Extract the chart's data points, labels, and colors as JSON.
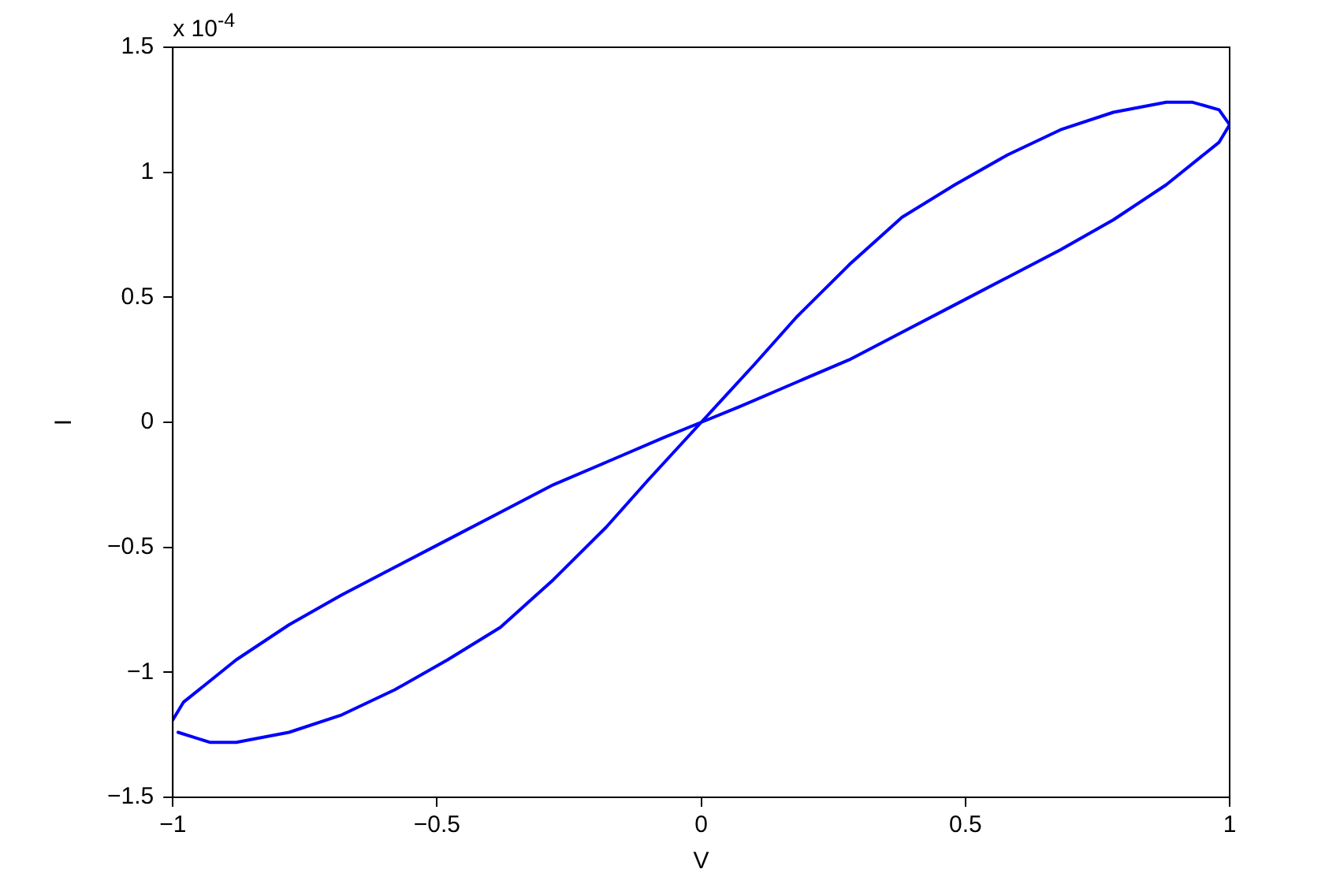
{
  "chart_data": {
    "type": "line",
    "xlabel": "V",
    "ylabel": "I",
    "annotations": [
      "x 10$^{-4}$"
    ],
    "xlim": [
      -1,
      1
    ],
    "xticks": [
      {
        "value": -1,
        "label": "−1"
      },
      {
        "value": -0.5,
        "label": "−0.5"
      },
      0,
      0.5,
      1
    ],
    "ylim": [
      -1.5,
      1.5
    ],
    "yticks": [
      {
        "value": -1.5,
        "label": "−1.5"
      },
      {
        "value": -1,
        "label": "−1"
      },
      {
        "value": -0.5,
        "label": "−0.5"
      },
      0,
      0.5,
      1,
      1.5
    ],
    "grid": false,
    "legend": false,
    "marker": "none",
    "line_style": "solid",
    "series": [
      {
        "color": "#0000ff",
        "x": [
          -0.99,
          -0.93,
          -0.88,
          -0.78,
          -0.68,
          -0.58,
          -0.48,
          -0.38,
          -0.28,
          -0.18,
          -0.1,
          0,
          0.1,
          0.18,
          0.28,
          0.38,
          0.48,
          0.58,
          0.68,
          0.78,
          0.88,
          0.93,
          0.98,
          1,
          0.98,
          0.88,
          0.78,
          0.68,
          0.58,
          0.48,
          0.38,
          0.28,
          0.18,
          0.07,
          0,
          -0.07,
          -0.18,
          -0.28,
          -0.38,
          -0.48,
          -0.58,
          -0.68,
          -0.78,
          -0.88,
          -0.98,
          -1
        ],
        "values": [
          -1.24,
          -1.28,
          -1.28,
          -1.24,
          -1.17,
          -1.07,
          -0.95,
          -0.82,
          -0.63,
          -0.42,
          -0.23,
          0,
          0.23,
          0.42,
          0.63,
          0.82,
          0.95,
          1.07,
          1.17,
          1.24,
          1.28,
          1.28,
          1.25,
          1.19,
          1.12,
          0.95,
          0.81,
          0.69,
          0.58,
          0.47,
          0.36,
          0.25,
          0.16,
          0.06,
          0,
          -0.06,
          -0.16,
          -0.25,
          -0.36,
          -0.47,
          -0.58,
          -0.69,
          -0.81,
          -0.95,
          -1.12,
          -1.19
        ]
      }
    ]
  }
}
